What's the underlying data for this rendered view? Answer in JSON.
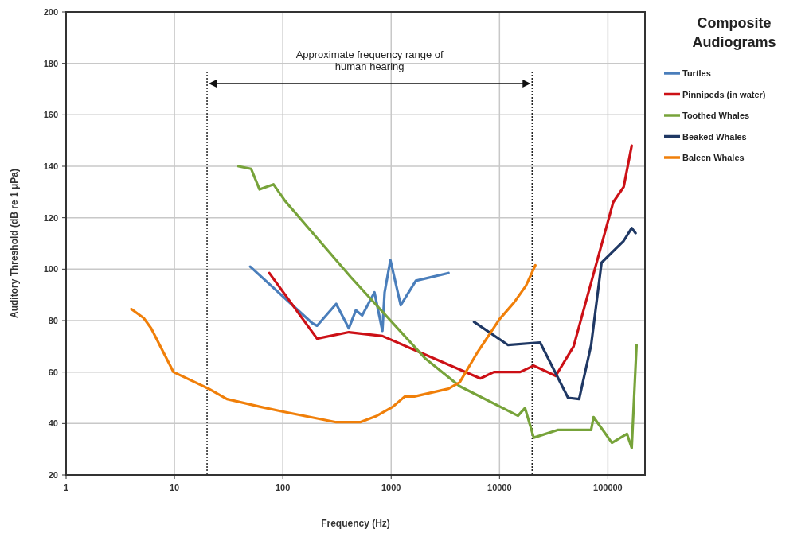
{
  "chart_data": {
    "type": "line",
    "xlabel": "Frequency (Hz)",
    "ylabel": "Auditory Threshold (dB re 1 μPa)",
    "legend_title": "Composite Audiograms",
    "log": "x",
    "grid": true,
    "legend": "right",
    "line_style": "solid",
    "marker": "none",
    "xlim": [
      1,
      220000
    ],
    "xticks": [
      1,
      10,
      100,
      1000,
      10000,
      100000
    ],
    "ylim": [
      20,
      200
    ],
    "yticks": [
      20,
      40,
      60,
      80,
      100,
      120,
      140,
      160,
      180,
      200
    ],
    "ref_lines": [
      {
        "axis": "x",
        "value": 20,
        "line_style": "dotted",
        "color": "#222222"
      },
      {
        "axis": "x",
        "value": 20000,
        "line_style": "dotted",
        "color": "#222222"
      }
    ],
    "annotations": [
      "Approximate frequency range of human hearing"
    ],
    "series": [
      {
        "name": "Turtles",
        "color": "#4a7ebb",
        "x": [
          50,
          187,
          207,
          311,
          407,
          472,
          540,
          701,
          830,
          870,
          984,
          1225,
          1690,
          3380
        ],
        "values": [
          101,
          79,
          78,
          86.5,
          77,
          84,
          82,
          91,
          76,
          91,
          103.5,
          86,
          95.5,
          98.5
        ]
      },
      {
        "name": "Pinnipeds (in water)",
        "color": "#cc1016",
        "x": [
          75,
          207,
          407,
          830,
          6660,
          8880,
          15500,
          20700,
          33000,
          48300,
          112000,
          140000,
          166000
        ],
        "values": [
          98.5,
          73,
          75.5,
          74,
          57.5,
          60,
          60,
          62.5,
          58.5,
          70,
          126,
          132,
          148
        ]
      },
      {
        "name": "Toothed Whales",
        "color": "#77a33a",
        "x": [
          39,
          51,
          61,
          82,
          105,
          422,
          2040,
          4290,
          14800,
          17200,
          20700,
          34400,
          70100,
          73800,
          109000,
          150000,
          166000,
          184000
        ],
        "values": [
          140,
          139,
          131,
          133,
          126.5,
          97,
          65.5,
          54.5,
          43,
          46,
          34.5,
          37.5,
          37.5,
          42.5,
          32.5,
          36,
          30.5,
          70.5
        ]
      },
      {
        "name": "Beaked Whales",
        "color": "#1f3864",
        "x": [
          5820,
          12000,
          23700,
          42900,
          54300,
          70100,
          87400,
          140000,
          166000,
          180000
        ],
        "values": [
          79.5,
          70.5,
          71.5,
          50,
          49.5,
          70.5,
          102.5,
          111,
          116,
          114
        ]
      },
      {
        "name": "Baleen Whales",
        "color": "#f07f09",
        "x": [
          4,
          5.2,
          6.1,
          9.8,
          20.7,
          30.5,
          62,
          103,
          311,
          517,
          738,
          1035,
          1335,
          1640,
          3380,
          4290,
          6330,
          9980,
          13600,
          17500,
          21400
        ],
        "values": [
          84.5,
          81,
          77,
          60,
          53.5,
          49.5,
          46.5,
          44.5,
          40.5,
          40.5,
          43,
          46.5,
          50.5,
          50.5,
          53.5,
          56,
          68,
          80.5,
          87,
          93.5,
          101.5
        ]
      }
    ]
  }
}
